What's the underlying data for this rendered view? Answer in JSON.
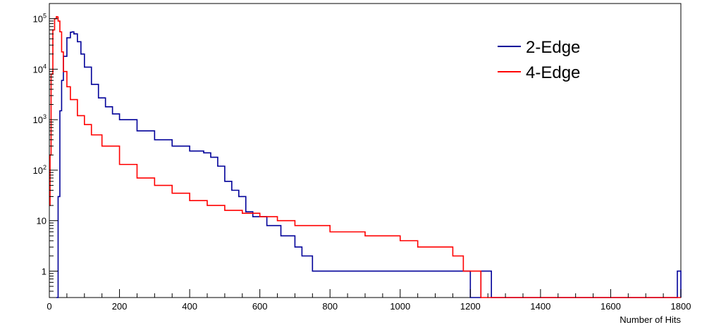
{
  "chart_data": {
    "type": "line",
    "title": "",
    "xlabel": "Number of Hits",
    "ylabel": "",
    "xlim": [
      0,
      1800
    ],
    "ylim": [
      0.3,
      200000
    ],
    "yscale": "log",
    "grid": false,
    "legend_position": "top-right",
    "x_ticks": [
      0,
      200,
      400,
      600,
      800,
      1000,
      1200,
      1400,
      1600,
      1800
    ],
    "x_tick_labels": [
      "0",
      "200",
      "400",
      "600",
      "800",
      "1000",
      "1200",
      "1400",
      "1600",
      "1800"
    ],
    "y_ticks": [
      1,
      10,
      100,
      1000,
      10000,
      100000
    ],
    "y_tick_labels": [
      {
        "base": "1",
        "exp": ""
      },
      {
        "base": "10",
        "exp": ""
      },
      {
        "base": "10",
        "exp": "2"
      },
      {
        "base": "10",
        "exp": "3"
      },
      {
        "base": "10",
        "exp": "4"
      },
      {
        "base": "10",
        "exp": "5"
      }
    ],
    "series": [
      {
        "name": "2-Edge",
        "color": "#000099",
        "x": [
          20,
          25,
          30,
          35,
          40,
          50,
          60,
          65,
          70,
          80,
          90,
          100,
          120,
          140,
          160,
          180,
          200,
          250,
          300,
          350,
          400,
          440,
          460,
          480,
          500,
          520,
          540,
          560,
          580,
          600,
          620,
          640,
          660,
          680,
          700,
          720,
          750,
          800,
          850,
          900,
          950,
          1000,
          1050,
          1100,
          1150,
          1200,
          1230,
          1260,
          1300,
          1790,
          1800
        ],
        "y": [
          0.3,
          30,
          1500,
          6000,
          18000,
          42000,
          54000,
          55000,
          50000,
          35000,
          20000,
          11000,
          5000,
          2700,
          1800,
          1300,
          1000,
          600,
          400,
          300,
          240,
          220,
          180,
          120,
          60,
          40,
          30,
          15,
          12,
          12,
          8,
          8,
          5,
          5,
          3,
          2,
          1,
          1,
          1,
          1,
          1,
          1,
          1,
          1,
          1,
          0.3,
          1,
          0.3,
          0.3,
          1,
          0.3
        ]
      },
      {
        "name": "4-Edge",
        "color": "#ff0000",
        "x": [
          0,
          2,
          5,
          10,
          15,
          20,
          22,
          25,
          30,
          35,
          40,
          50,
          60,
          80,
          100,
          120,
          150,
          200,
          250,
          300,
          350,
          400,
          450,
          500,
          550,
          600,
          650,
          700,
          750,
          800,
          850,
          900,
          950,
          1000,
          1050,
          1100,
          1150,
          1180,
          1200,
          1230,
          1300,
          1400,
          1500,
          1600,
          1700,
          1800
        ],
        "y": [
          20,
          200,
          8000,
          60000,
          100000,
          110000,
          108000,
          90000,
          55000,
          22000,
          9000,
          4500,
          2500,
          1200,
          800,
          500,
          300,
          130,
          70,
          50,
          35,
          25,
          20,
          16,
          14,
          12,
          10,
          8,
          8,
          6,
          6,
          5,
          5,
          4,
          3,
          3,
          2,
          1,
          1,
          0.3,
          0.3,
          0.3,
          0.3,
          0.3,
          0.3,
          0.3
        ]
      }
    ]
  }
}
